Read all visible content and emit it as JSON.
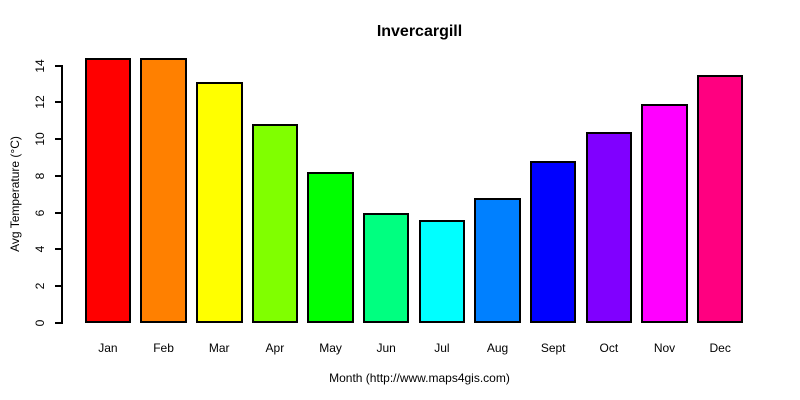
{
  "chart_data": {
    "type": "bar",
    "title": "Invercargill",
    "xlabel": "Month (http://www.maps4gis.com)",
    "ylabel": "Avg Temperature (°C)",
    "categories": [
      "Jan",
      "Feb",
      "Mar",
      "Apr",
      "May",
      "Jun",
      "Jul",
      "Aug",
      "Sept",
      "Oct",
      "Nov",
      "Dec"
    ],
    "values": [
      14.4,
      14.4,
      13.1,
      10.8,
      8.2,
      6.0,
      5.6,
      6.8,
      8.8,
      10.4,
      11.9,
      13.5
    ],
    "bar_colors": [
      "#FF0000",
      "#FF8000",
      "#FFFF00",
      "#80FF00",
      "#00FF00",
      "#00FF80",
      "#00FFFF",
      "#0080FF",
      "#0000FF",
      "#8000FF",
      "#FF00FF",
      "#FF0080"
    ],
    "bar_border_color": "#000000",
    "ylim": [
      0,
      14
    ],
    "yticks": [
      0,
      2,
      4,
      6,
      8,
      10,
      12,
      14
    ],
    "grid": false,
    "legend": "none",
    "background_color": "#FFFFFF",
    "text_color": "#000000"
  }
}
